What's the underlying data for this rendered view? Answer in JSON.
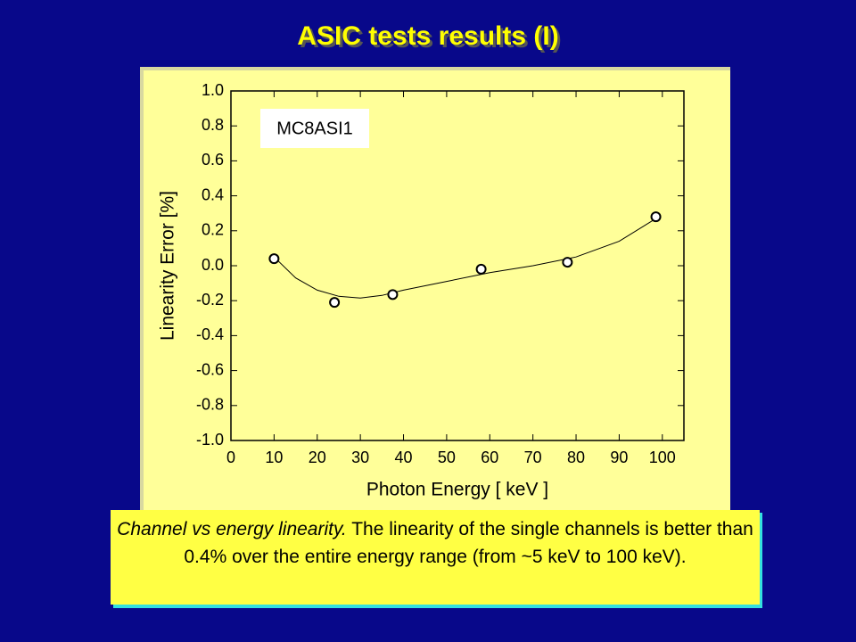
{
  "slide_title": "ASIC tests results (I)",
  "caption_italic": "Channel vs energy linearity.",
  "caption_text": "The linearity of the single channels is better than 0.4% over the entire energy range (from ~5 keV to 100 keV).",
  "chart_data": {
    "type": "scatter",
    "x_label": "Photon Energy  [ keV ]",
    "y_label": "Linearity Error [%]",
    "annotation": "MC8ASI1",
    "x": [
      10,
      24,
      37.5,
      58,
      78,
      98.5
    ],
    "values": [
      0.04,
      -0.21,
      -0.165,
      -0.02,
      0.02,
      0.28
    ],
    "fit": {
      "x": [
        10,
        15,
        20,
        25,
        30,
        35,
        40,
        50,
        60,
        70,
        80,
        90,
        98.5
      ],
      "values": [
        0.05,
        -0.07,
        -0.14,
        -0.175,
        -0.185,
        -0.17,
        -0.14,
        -0.09,
        -0.04,
        0.0,
        0.05,
        0.14,
        0.27
      ]
    },
    "xlim": [
      0,
      105
    ],
    "ylim": [
      -1,
      1
    ],
    "xticks": [
      0,
      10,
      20,
      30,
      40,
      50,
      60,
      70,
      80,
      90,
      100
    ],
    "yticks": [
      {
        "value": 1,
        "label": "1.0"
      },
      {
        "value": 0.8,
        "label": "0.8"
      },
      {
        "value": 0.6,
        "label": "0.6"
      },
      {
        "value": 0.4,
        "label": "0.4"
      },
      {
        "value": 0.2,
        "label": "0.2"
      },
      {
        "value": 0,
        "label": "0.0"
      },
      {
        "value": -0.2,
        "label": "-0.2"
      },
      {
        "value": -0.4,
        "label": "-0.4"
      },
      {
        "value": -0.6,
        "label": "-0.6"
      },
      {
        "value": -0.8,
        "label": "-0.8"
      },
      {
        "value": -1,
        "label": "-1.0"
      }
    ]
  }
}
